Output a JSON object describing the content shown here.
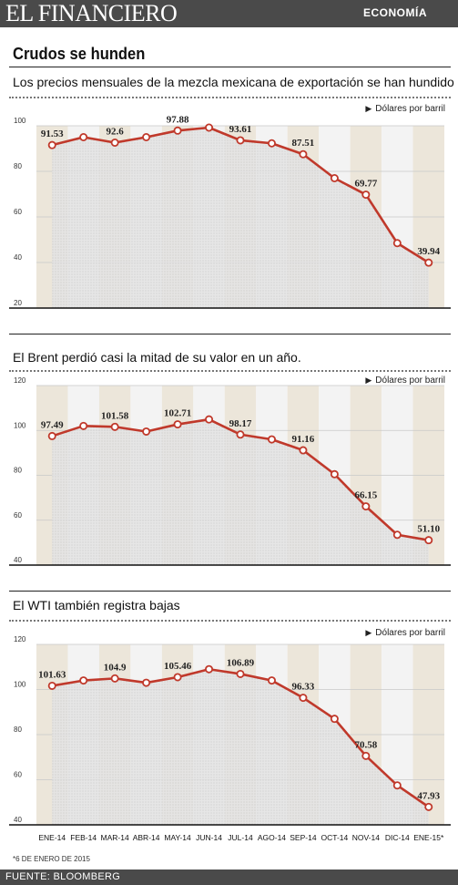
{
  "header": {
    "logo_text": "EL FINANCIERO",
    "section_label": "ECONOMÍA"
  },
  "title": "Crudos se hunden",
  "charts": [
    {
      "subtitle": "Los precios mensuales de la mezcla mexicana de exportación se han hundido",
      "unit": "Dólares por barril"
    },
    {
      "subtitle": "El Brent perdió casi la mitad de su valor en un año.",
      "unit": "Dólares por barril"
    },
    {
      "subtitle": "El WTI también registra bajas",
      "unit": "Dólares por barril"
    }
  ],
  "colors": {
    "line": "#c0392b",
    "band_dark": "#ece6da",
    "band_light": "#f3f3f3",
    "bar_gray": "#4a4a4a"
  },
  "chart_data": [
    {
      "type": "line",
      "categories": [
        "ENE-14",
        "FEB-14",
        "MAR-14",
        "ABR-14",
        "MAY-14",
        "JUN-14",
        "JUL-14",
        "AGO-14",
        "SEP-14",
        "OCT-14",
        "NOV-14",
        "DIC-14",
        "ENE-15*"
      ],
      "values": [
        91.53,
        95.0,
        92.6,
        95.0,
        97.88,
        99.2,
        93.61,
        92.3,
        87.51,
        77.0,
        69.77,
        48.5,
        39.94
      ],
      "labels": [
        "91.53",
        "",
        "92.6",
        "",
        "97.88",
        "",
        "93.61",
        "",
        "87.51",
        "",
        "69.77",
        "",
        "39.94"
      ],
      "yticks": [
        20,
        40,
        60,
        80,
        100
      ],
      "ylim": [
        20,
        100
      ],
      "ylabel": "Dólares por barril"
    },
    {
      "type": "line",
      "categories": [
        "ENE-14",
        "FEB-14",
        "MAR-14",
        "ABR-14",
        "MAY-14",
        "JUN-14",
        "JUL-14",
        "AGO-14",
        "SEP-14",
        "OCT-14",
        "NOV-14",
        "DIC-14",
        "ENE-15*"
      ],
      "values": [
        97.49,
        102.0,
        101.58,
        99.5,
        102.71,
        104.9,
        98.17,
        96.0,
        91.16,
        80.5,
        66.15,
        53.5,
        51.1
      ],
      "labels": [
        "97.49",
        "",
        "101.58",
        "",
        "102.71",
        "",
        "98.17",
        "",
        "91.16",
        "",
        "66.15",
        "",
        "51.10"
      ],
      "yticks": [
        40,
        60,
        80,
        100,
        120
      ],
      "ylim": [
        40,
        120
      ],
      "ylabel": "Dólares por barril"
    },
    {
      "type": "line",
      "categories": [
        "ENE-14",
        "FEB-14",
        "MAR-14",
        "ABR-14",
        "MAY-14",
        "JUN-14",
        "JUL-14",
        "AGO-14",
        "SEP-14",
        "OCT-14",
        "NOV-14",
        "DIC-14",
        "ENE-15*"
      ],
      "values": [
        101.63,
        104.0,
        104.9,
        103.0,
        105.46,
        109.0,
        106.89,
        104.0,
        96.33,
        87.0,
        70.58,
        57.5,
        47.93
      ],
      "labels": [
        "101.63",
        "",
        "104.9",
        "",
        "105.46",
        "",
        "106.89",
        "",
        "96.33",
        "",
        "70.58",
        "",
        "47.93"
      ],
      "yticks": [
        40,
        60,
        80,
        100,
        120
      ],
      "ylim": [
        40,
        120
      ],
      "ylabel": "Dólares por barril"
    }
  ],
  "note": "*6 DE ENERO DE 2015",
  "source": "FUENTE: BLOOMBERG"
}
